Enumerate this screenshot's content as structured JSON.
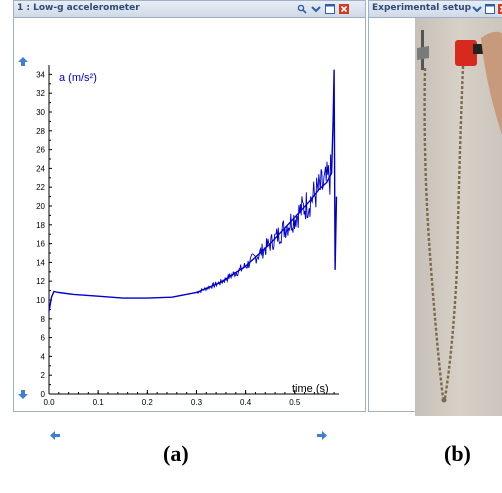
{
  "panel_a": {
    "title": "1 : Low-g accelerometer",
    "toolbar_icons": [
      "zoom-icon",
      "collapse-icon",
      "maximize-icon",
      "close-icon"
    ]
  },
  "panel_b": {
    "title": "Experimental setup",
    "toolbar_icons": [
      "collapse-icon",
      "maximize-icon",
      "close-icon"
    ]
  },
  "colors": {
    "series": "#0000cc",
    "title_text": "#2f4a79",
    "nav_arrow": "#3d7fd6",
    "close": "#d03a20"
  },
  "chart_data": {
    "type": "line",
    "ylabel": "a (m/s²)",
    "xlabel": "time (s)",
    "xlim": [
      0,
      0.59
    ],
    "ylim": [
      0,
      35
    ],
    "x_ticks": [
      "0.0",
      "0.1",
      "0.2",
      "0.3",
      "0.4",
      "0.5"
    ],
    "y_ticks": [
      "0",
      "2",
      "4",
      "6",
      "8",
      "10",
      "12",
      "14",
      "16",
      "18",
      "20",
      "22",
      "24",
      "26",
      "28",
      "30",
      "32",
      "34"
    ],
    "series": [
      {
        "x": [
          0.0,
          0.005,
          0.01,
          0.02,
          0.05,
          0.1,
          0.15,
          0.2,
          0.25,
          0.3,
          0.35,
          0.4,
          0.45,
          0.5,
          0.53,
          0.55,
          0.565,
          0.575,
          0.578,
          0.58,
          0.582,
          0.585
        ],
        "y": [
          8.8,
          10.3,
          10.9,
          10.8,
          10.6,
          10.4,
          10.2,
          10.2,
          10.3,
          10.8,
          11.9,
          13.6,
          16.0,
          18.8,
          20.5,
          21.8,
          22.5,
          23.5,
          29.0,
          34.5,
          13.2,
          21.0
        ]
      }
    ]
  },
  "captions": {
    "a": "(a)",
    "b": "(b)"
  }
}
